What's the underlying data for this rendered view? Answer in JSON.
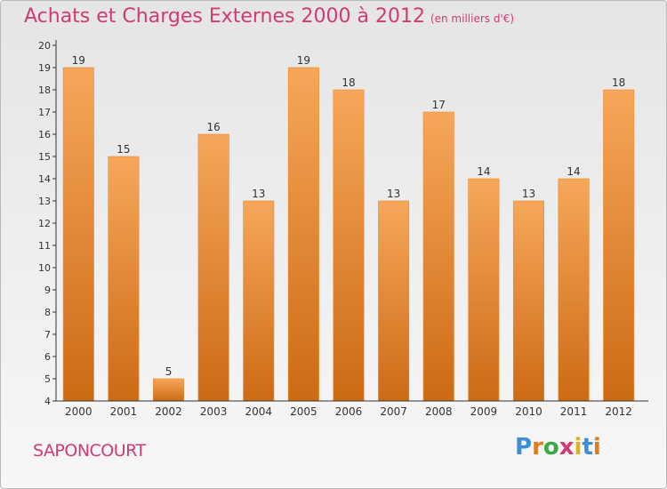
{
  "title": "Achats et Charges Externes 2000 à 2012",
  "unit": "(en milliers d'€)",
  "town": "SAPONCOURT",
  "logo": {
    "letters": [
      "P",
      "r",
      "o",
      "x",
      "i",
      "t",
      "i"
    ],
    "colors": [
      "#3a8fd6",
      "#e07a1f",
      "#3aa847",
      "#d13a75",
      "#e0b21f",
      "#3a8fd6",
      "#e07a1f"
    ]
  },
  "colors": {
    "bar": "#f08a2e",
    "bar_light": "#f6a75a",
    "bar_dark": "#cd6a14",
    "title": "#d13a75",
    "axis": "#333333"
  },
  "chart_data": {
    "type": "bar",
    "categories": [
      "2000",
      "2001",
      "2002",
      "2003",
      "2004",
      "2005",
      "2006",
      "2007",
      "2008",
      "2009",
      "2010",
      "2011",
      "2012"
    ],
    "values": [
      19,
      15,
      5,
      16,
      13,
      19,
      18,
      13,
      17,
      14,
      13,
      14,
      18
    ],
    "ylim": [
      4,
      20
    ],
    "yticks": [
      4,
      5,
      6,
      7,
      8,
      9,
      10,
      11,
      12,
      13,
      14,
      15,
      16,
      17,
      18,
      19,
      20
    ],
    "grid": false,
    "legend": "none"
  }
}
